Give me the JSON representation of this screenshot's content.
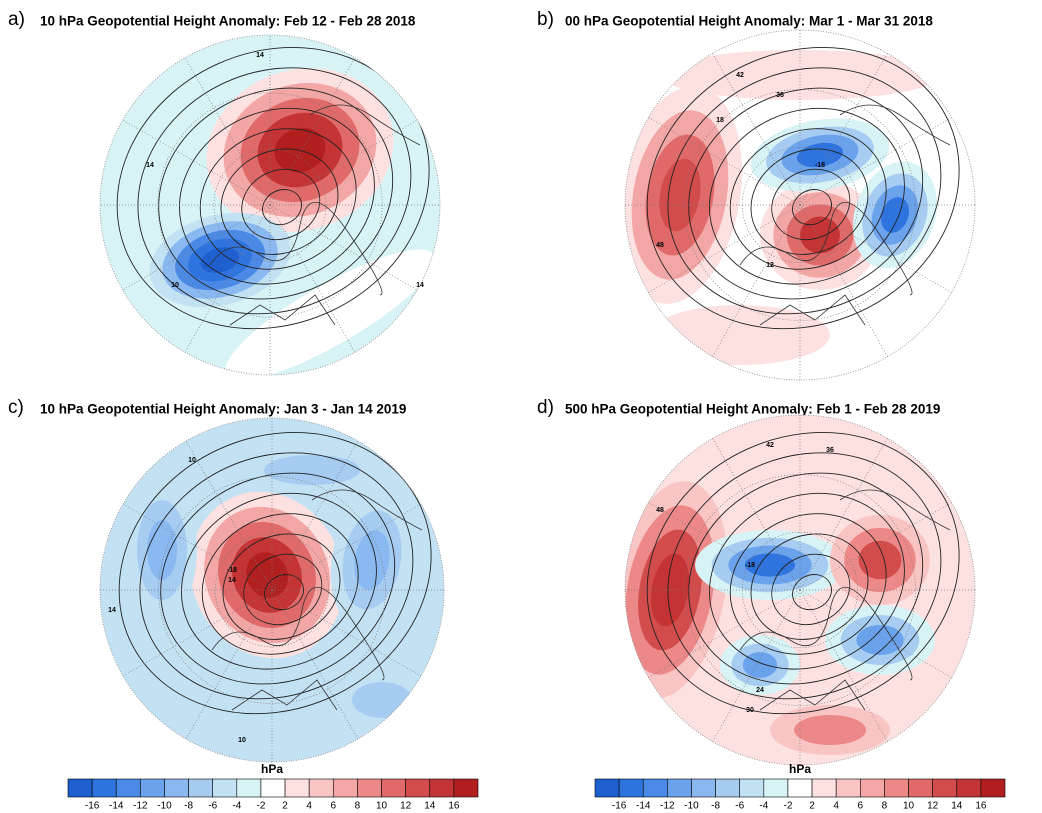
{
  "panels": [
    {
      "letter": "a)",
      "title": "10 hPa Geopotential Height Anomaly: Feb 12 - Feb 28 2018",
      "contour_labels": [
        14,
        14,
        10,
        14
      ]
    },
    {
      "letter": "b)",
      "title": "00 hPa Geopotential Height Anomaly: Mar 1 - Mar 31 2018",
      "contour_labels": [
        42,
        36,
        18,
        -18,
        12,
        48
      ]
    },
    {
      "letter": "c)",
      "title": "10 hPa Geopotential Height Anomaly: Jan 3 - Jan 14 2019",
      "contour_labels": [
        10,
        14,
        -18,
        14,
        10
      ]
    },
    {
      "letter": "d)",
      "title": "500 hPa Geopotential Height Anomaly: Feb 1 - Feb 28 2019",
      "contour_labels": [
        42,
        36,
        48,
        -18,
        24,
        30
      ]
    }
  ],
  "colorbars": [
    {
      "unit": "hPa",
      "ticks": [
        -16,
        -14,
        -12,
        -10,
        -8,
        -6,
        -4,
        -2,
        2,
        4,
        6,
        8,
        10,
        12,
        14,
        16
      ],
      "colors": [
        "#1f5fcf",
        "#2f74de",
        "#4a8ae6",
        "#6aa2ec",
        "#8ab8f0",
        "#a6ccf2",
        "#c2e2f4",
        "#d8f3f6",
        "#ffffff",
        "#fde0e0",
        "#f9c4c4",
        "#f3a6a6",
        "#ec8888",
        "#e06a6a",
        "#d34c4c",
        "#c43434",
        "#b21f1f"
      ]
    },
    {
      "unit": "hPa",
      "ticks": [
        -16,
        -14,
        -12,
        -10,
        -8,
        -6,
        -4,
        -2,
        2,
        4,
        6,
        8,
        10,
        12,
        14,
        16
      ],
      "colors": [
        "#1f5fcf",
        "#2f74de",
        "#4a8ae6",
        "#6aa2ec",
        "#8ab8f0",
        "#a6ccf2",
        "#c2e2f4",
        "#d8f3f6",
        "#ffffff",
        "#fde0e0",
        "#f9c4c4",
        "#f3a6a6",
        "#ec8888",
        "#e06a6a",
        "#d34c4c",
        "#c43434",
        "#b21f1f"
      ]
    }
  ]
}
